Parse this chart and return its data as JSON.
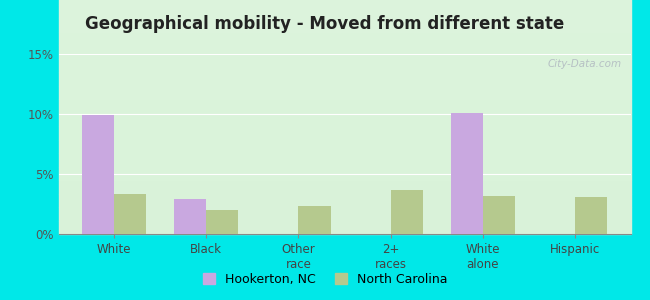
{
  "title": "Geographical mobility - Moved from different state",
  "categories": [
    "White",
    "Black",
    "Other\nrace",
    "2+\nraces",
    "White\nalone",
    "Hispanic"
  ],
  "hookerton_values": [
    9.9,
    2.9,
    0,
    0,
    10.1,
    0
  ],
  "nc_values": [
    3.3,
    2.0,
    2.3,
    3.7,
    3.2,
    3.1
  ],
  "hookerton_color": "#c9a8e0",
  "nc_color": "#b5c98e",
  "ylim": [
    0,
    15
  ],
  "yticks": [
    0,
    5,
    10,
    15
  ],
  "ytick_labels": [
    "0%",
    "5%",
    "10%",
    "15%"
  ],
  "background_color": "#00e8e8",
  "bar_width": 0.35,
  "legend_hookerton": "Hookerton, NC",
  "legend_nc": "North Carolina",
  "watermark": "City-Data.com",
  "title_fontsize": 12,
  "tick_fontsize": 8.5
}
